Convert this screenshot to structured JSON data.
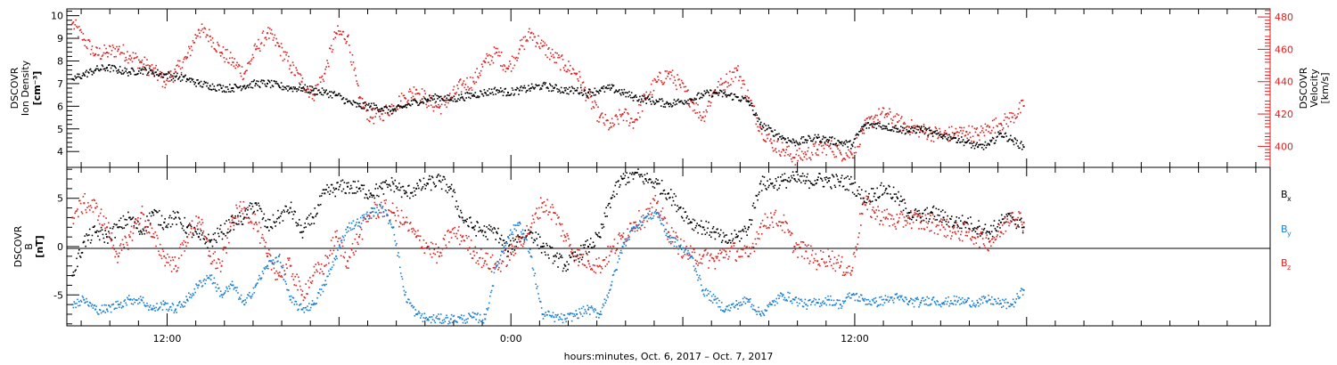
{
  "colors": {
    "black": "#000000",
    "red": "#dd2222",
    "blue": "#1a7fd4"
  },
  "chart_data": [
    {
      "type": "scatter",
      "panel": "top",
      "ylabel_left": [
        "DSCOVR",
        "Ion Density",
        "[cm⁻³]"
      ],
      "ylabel_right": [
        "DSCOVR",
        "Velocity",
        "[km/s]"
      ],
      "xlim_hours": [
        0,
        42
      ],
      "ylim_left": [
        3.3,
        10.3
      ],
      "ylim_right": [
        387,
        485
      ],
      "yticks_left": [
        "4",
        "5",
        "6",
        "7",
        "8",
        "9",
        "10"
      ],
      "yticks_right": [
        "400",
        "420",
        "440",
        "460",
        "480"
      ],
      "series": [
        {
          "axis": "left",
          "color": "black",
          "x": [
            0.2,
            0.6,
            1,
            1.4,
            1.8,
            2.2,
            2.6,
            3,
            3.4,
            3.8,
            4.2,
            4.6,
            5,
            5.4,
            5.8,
            6.2,
            6.6,
            7,
            7.4,
            7.8,
            8.2,
            8.6,
            9,
            9.4,
            9.8,
            10.2,
            10.6,
            11,
            11.4,
            11.8,
            12.2,
            12.6,
            13,
            13.4,
            13.8,
            14.2,
            14.6,
            15,
            15.4,
            15.8,
            16.2,
            16.6,
            17,
            17.4,
            17.8,
            18.2,
            18.6,
            19,
            19.4,
            19.8,
            20.2,
            20.6,
            21,
            21.4,
            21.8,
            22.2,
            22.6,
            23,
            23.4,
            23.8,
            24.2,
            24.6,
            25,
            25.4,
            25.8,
            26.2,
            26.6,
            27,
            27.4,
            27.8,
            28.2,
            28.6,
            29,
            29.4,
            29.8,
            30.2,
            30.6,
            31,
            31.4,
            31.8,
            32.2,
            32.6,
            33,
            33.4
          ],
          "y": [
            7.2,
            7.4,
            7.6,
            7.7,
            7.6,
            7.5,
            7.6,
            7.5,
            7.4,
            7.3,
            7.2,
            7.0,
            6.9,
            6.8,
            6.8,
            6.9,
            7.0,
            7.0,
            6.9,
            6.8,
            6.8,
            6.7,
            6.6,
            6.5,
            6.2,
            6.0,
            6.0,
            5.9,
            5.8,
            6.0,
            6.2,
            6.3,
            6.4,
            6.3,
            6.4,
            6.5,
            6.6,
            6.7,
            6.6,
            6.7,
            6.8,
            6.9,
            6.8,
            6.7,
            6.7,
            6.6,
            6.7,
            6.8,
            6.6,
            6.4,
            6.3,
            6.2,
            6.1,
            6.2,
            6.3,
            6.5,
            6.6,
            6.5,
            6.4,
            6.2,
            5.2,
            4.9,
            4.6,
            4.4,
            4.5,
            4.6,
            4.5,
            4.4,
            4.3,
            5.1,
            5.2,
            5.1,
            5.0,
            4.9,
            5.0,
            4.8,
            4.7,
            4.6,
            4.4,
            4.2,
            4.3,
            4.8,
            4.5,
            4.2
          ]
        },
        {
          "axis": "right",
          "color": "red",
          "x": [
            0.2,
            0.6,
            1,
            1.4,
            1.8,
            2.2,
            2.6,
            3,
            3.4,
            3.8,
            4.2,
            4.6,
            5,
            5.4,
            5.8,
            6.2,
            6.6,
            7,
            7.4,
            7.8,
            8.2,
            8.6,
            9,
            9.4,
            9.8,
            10.2,
            10.6,
            11,
            11.4,
            11.8,
            12.2,
            12.6,
            13,
            13.4,
            13.8,
            14.2,
            14.6,
            15,
            15.4,
            15.8,
            16.2,
            16.6,
            17,
            17.4,
            17.8,
            18.2,
            18.6,
            19,
            19.4,
            19.8,
            20.2,
            20.6,
            21,
            21.4,
            21.8,
            22.2,
            22.6,
            23,
            23.4,
            23.8,
            24.2,
            24.6,
            25,
            25.4,
            25.8,
            26.2,
            26.6,
            27,
            27.4,
            27.8,
            28.2,
            28.6,
            29,
            29.4,
            29.8,
            30.2,
            30.6,
            31,
            31.4,
            31.8,
            32.2,
            32.6,
            33,
            33.4
          ],
          "y": [
            476,
            466,
            457,
            458,
            460,
            456,
            452,
            447,
            440,
            446,
            455,
            472,
            468,
            458,
            452,
            445,
            460,
            470,
            462,
            450,
            440,
            432,
            445,
            470,
            468,
            430,
            418,
            420,
            425,
            430,
            435,
            428,
            424,
            430,
            438,
            440,
            452,
            458,
            448,
            460,
            470,
            462,
            455,
            450,
            445,
            430,
            418,
            412,
            420,
            415,
            430,
            440,
            445,
            438,
            428,
            418,
            434,
            440,
            447,
            430,
            412,
            402,
            398,
            393,
            395,
            398,
            400,
            396,
            395,
            410,
            418,
            420,
            415,
            412,
            410,
            408,
            407,
            408,
            409,
            407,
            412,
            414,
            418,
            425
          ]
        }
      ]
    },
    {
      "type": "scatter",
      "panel": "bottom",
      "ylabel_left": [
        "DSCOVR",
        "B",
        "[nT]"
      ],
      "xlim_hours": [
        0,
        42
      ],
      "ylim": [
        -8.2,
        8.2
      ],
      "yticks": [
        "-5",
        "0",
        "5"
      ],
      "xticks": [
        "12:00",
        "0:00",
        "12:00"
      ],
      "xtick_hours": [
        3.5,
        15.5,
        27.5
      ],
      "xlabel": "hours:minutes, Oct.  6, 2017 – Oct.  7, 2017",
      "legend": [
        {
          "label": "B",
          "sub": "x",
          "color": "black"
        },
        {
          "label": "B",
          "sub": "y",
          "color": "blue"
        },
        {
          "label": "B",
          "sub": "z",
          "color": "red"
        }
      ],
      "series": [
        {
          "name": "Bx",
          "color": "black",
          "x": [
            0.2,
            0.6,
            1,
            1.4,
            1.8,
            2.2,
            2.6,
            3,
            3.4,
            3.8,
            4.2,
            4.6,
            5,
            5.4,
            5.8,
            6.2,
            6.6,
            7,
            7.4,
            7.8,
            8.2,
            8.6,
            9,
            9.4,
            9.8,
            10.2,
            10.6,
            11,
            11.4,
            11.8,
            12.2,
            12.6,
            13,
            13.4,
            13.8,
            14.2,
            14.6,
            15,
            15.4,
            15.8,
            16.2,
            16.6,
            17,
            17.4,
            17.8,
            18.2,
            18.6,
            19,
            19.4,
            19.8,
            20.2,
            20.6,
            21,
            21.4,
            21.8,
            22.2,
            22.6,
            23,
            23.4,
            23.8,
            24.2,
            24.6,
            25,
            25.4,
            25.8,
            26.2,
            26.6,
            27,
            27.4,
            27.8,
            28.2,
            28.6,
            29,
            29.4,
            29.8,
            30.2,
            30.6,
            31,
            31.4,
            31.8,
            32.2,
            32.6,
            33,
            33.4
          ],
          "y": [
            -3,
            0.5,
            1.5,
            1,
            2,
            3,
            1.5,
            3.5,
            2.5,
            3,
            2,
            1,
            0.5,
            1.5,
            2.5,
            3,
            4.5,
            2,
            3,
            4,
            1.5,
            3,
            5.5,
            6,
            6.2,
            6,
            5.5,
            6,
            6.5,
            5.5,
            6,
            6.5,
            6.8,
            6,
            3,
            2,
            1.5,
            1.5,
            -0.5,
            1,
            1.5,
            0,
            -1,
            -2,
            -1,
            0,
            1,
            5,
            7,
            7.5,
            7,
            6.5,
            5.5,
            4,
            2.5,
            2,
            1.5,
            0.5,
            1,
            2,
            6.5,
            6.5,
            6.8,
            7,
            6.8,
            6.9,
            6.8,
            6.7,
            6.5,
            5,
            5.5,
            6,
            5,
            3.5,
            3,
            3.5,
            3,
            2.5,
            2.5,
            2,
            1.5,
            2.5,
            3,
            2
          ]
        },
        {
          "name": "By",
          "color": "blue",
          "x": [
            0.2,
            0.6,
            1,
            1.4,
            1.8,
            2.2,
            2.6,
            3,
            3.4,
            3.8,
            4.2,
            4.6,
            5,
            5.4,
            5.8,
            6.2,
            6.6,
            7,
            7.4,
            7.8,
            8.2,
            8.6,
            9,
            9.4,
            9.8,
            10.2,
            10.6,
            11,
            11.4,
            11.8,
            12.2,
            12.6,
            13,
            13.4,
            13.8,
            14.2,
            14.6,
            15,
            15.4,
            15.8,
            16.2,
            16.6,
            17,
            17.4,
            17.8,
            18.2,
            18.6,
            19,
            19.4,
            19.8,
            20.2,
            20.6,
            21,
            21.4,
            21.8,
            22.2,
            22.6,
            23,
            23.4,
            23.8,
            24.2,
            24.6,
            25,
            25.4,
            25.8,
            26.2,
            26.6,
            27,
            27.4,
            27.8,
            28.2,
            28.6,
            29,
            29.4,
            29.8,
            30.2,
            30.6,
            31,
            31.4,
            31.8,
            32.2,
            32.6,
            33,
            33.4
          ],
          "y": [
            -6,
            -5.5,
            -6.5,
            -6.5,
            -6,
            -5.5,
            -5.5,
            -6.5,
            -6,
            -6.5,
            -5.5,
            -4,
            -3,
            -5,
            -4,
            -6,
            -4,
            -2,
            -1,
            -5.5,
            -6.5,
            -6,
            -4,
            -1,
            2,
            2.5,
            3.5,
            4,
            2,
            -5,
            -7,
            -7.5,
            -7.5,
            -7.5,
            -7.5,
            -7.3,
            -7.5,
            -2,
            1,
            2.5,
            -1,
            -7,
            -7.3,
            -7.5,
            -7,
            -6.5,
            -7,
            -4,
            0,
            2,
            3,
            3.5,
            1,
            0,
            -1,
            -4.5,
            -5.5,
            -6.5,
            -6,
            -5.5,
            -7,
            -6,
            -5,
            -5.5,
            -6,
            -5.8,
            -5.5,
            -6,
            -5,
            -5.5,
            -5.8,
            -5.5,
            -5.3,
            -5.7,
            -5.8,
            -5.5,
            -5.8,
            -5.6,
            -5.7,
            -5.8,
            -5.5,
            -5.9,
            -6,
            -4.5
          ]
        },
        {
          "name": "Bz",
          "color": "red",
          "x": [
            0.2,
            0.6,
            1,
            1.4,
            1.8,
            2.2,
            2.6,
            3,
            3.4,
            3.8,
            4.2,
            4.6,
            5,
            5.4,
            5.8,
            6.2,
            6.6,
            7,
            7.4,
            7.8,
            8.2,
            8.6,
            9,
            9.4,
            9.8,
            10.2,
            10.6,
            11,
            11.4,
            11.8,
            12.2,
            12.6,
            13,
            13.4,
            13.8,
            14.2,
            14.6,
            15,
            15.4,
            15.8,
            16.2,
            16.6,
            17,
            17.4,
            17.8,
            18.2,
            18.6,
            19,
            19.4,
            19.8,
            20.2,
            20.6,
            21,
            21.4,
            21.8,
            22.2,
            22.6,
            23,
            23.4,
            23.8,
            24.2,
            24.6,
            25,
            25.4,
            25.8,
            26.2,
            26.6,
            27,
            27.4,
            27.8,
            28.2,
            28.6,
            29,
            29.4,
            29.8,
            30.2,
            30.6,
            31,
            31.4,
            31.8,
            32.2,
            32.6,
            33,
            33.4
          ],
          "y": [
            3,
            4.5,
            4,
            2,
            -1,
            1,
            3.5,
            1,
            -1,
            -2,
            1,
            3,
            -1,
            -2,
            3,
            4,
            2.5,
            -1,
            -3,
            -2,
            -5,
            -3,
            -2,
            1,
            -1.5,
            1,
            3.5,
            4,
            3.5,
            2.5,
            1,
            0,
            -1,
            1.5,
            1,
            -0.5,
            -1.5,
            -2,
            -1,
            0.5,
            2,
            4.5,
            3.5,
            1,
            -1,
            -1.5,
            -2,
            -0.5,
            1,
            2.5,
            3,
            4.5,
            1.5,
            0,
            -1,
            -1,
            -1.5,
            -0.5,
            -0.5,
            -1,
            2,
            3,
            2.5,
            0,
            -0.5,
            -1.5,
            -1,
            -2,
            -2.5,
            4.5,
            3.5,
            3,
            2.5,
            3,
            2.5,
            2.5,
            2,
            1.5,
            1.5,
            1,
            0.5,
            1.5,
            3.5,
            2.5
          ]
        }
      ]
    }
  ]
}
